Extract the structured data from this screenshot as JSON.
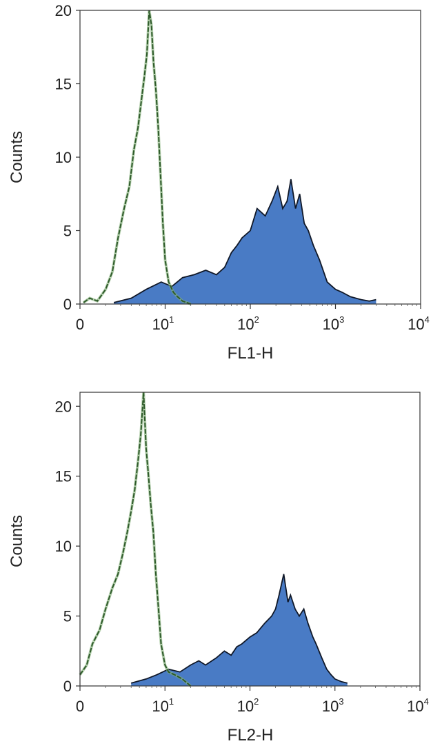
{
  "chart_data": [
    {
      "type": "area",
      "xlabel": "FL1-H",
      "ylabel": "Counts",
      "xscale": "log",
      "xlim": [
        1,
        10000
      ],
      "ylim": [
        0,
        20
      ],
      "xticks": [
        {
          "value": 1,
          "base": "0",
          "exp": ""
        },
        {
          "value": 10,
          "base": "10",
          "exp": "1"
        },
        {
          "value": 100,
          "base": "10",
          "exp": "2"
        },
        {
          "value": 1000,
          "base": "10",
          "exp": "3"
        },
        {
          "value": 10000,
          "base": "10",
          "exp": "4"
        }
      ],
      "yticks": [
        0,
        5,
        10,
        15,
        20
      ],
      "series": [
        {
          "style": "outline",
          "color": "#2e5a2a",
          "x": [
            1.1,
            1.3,
            1.6,
            2.0,
            2.4,
            2.8,
            3.3,
            3.8,
            4.3,
            4.8,
            5.3,
            5.7,
            6.1,
            6.5,
            6.9,
            7.3,
            7.8,
            8.3,
            8.8,
            9.4,
            10,
            11,
            12.5,
            14,
            16,
            20
          ],
          "y": [
            0.1,
            0.4,
            0.2,
            1.0,
            2.2,
            4.5,
            6.5,
            8.0,
            10.5,
            12.0,
            14.0,
            15.5,
            17.0,
            20.0,
            19.0,
            16.5,
            14.5,
            12.0,
            9.0,
            5.5,
            3.0,
            1.5,
            0.8,
            0.5,
            0.2,
            0
          ]
        },
        {
          "style": "filled",
          "color": "#3a70c0",
          "x": [
            2.5,
            4,
            6,
            9,
            12,
            16,
            22,
            30,
            40,
            50,
            60,
            70,
            80,
            100,
            120,
            150,
            180,
            210,
            240,
            270,
            300,
            340,
            380,
            430,
            480,
            550,
            650,
            800,
            1000,
            1200,
            1500,
            2000,
            2500,
            3000
          ],
          "y": [
            0.1,
            0.4,
            1.0,
            1.5,
            1.2,
            1.8,
            2.0,
            2.3,
            2.0,
            2.5,
            3.5,
            4.0,
            4.5,
            5.0,
            6.5,
            6.0,
            7.0,
            8.0,
            6.5,
            7.0,
            8.5,
            6.5,
            7.5,
            5.5,
            5.0,
            4.0,
            3.0,
            1.5,
            1.0,
            0.8,
            0.5,
            0.3,
            0.2,
            0.3
          ]
        }
      ]
    },
    {
      "type": "area",
      "xlabel": "FL2-H",
      "ylabel": "Counts",
      "xscale": "log",
      "xlim": [
        1,
        10000
      ],
      "ylim": [
        0,
        21
      ],
      "xticks": [
        {
          "value": 1,
          "base": "0",
          "exp": ""
        },
        {
          "value": 10,
          "base": "10",
          "exp": "1"
        },
        {
          "value": 100,
          "base": "10",
          "exp": "2"
        },
        {
          "value": 1000,
          "base": "10",
          "exp": "3"
        },
        {
          "value": 10000,
          "base": "10",
          "exp": "4"
        }
      ],
      "yticks": [
        0,
        5,
        10,
        15,
        20
      ],
      "series": [
        {
          "style": "outline",
          "color": "#2e5a2a",
          "x": [
            1.0,
            1.2,
            1.4,
            1.7,
            2.0,
            2.4,
            2.8,
            3.2,
            3.6,
            4.0,
            4.4,
            4.8,
            5.2,
            5.6,
            6.0,
            6.4,
            6.8,
            7.3,
            7.8,
            8.4,
            9.0,
            10,
            11,
            13,
            16,
            20
          ],
          "y": [
            0.8,
            1.5,
            3.0,
            4.0,
            5.5,
            7.0,
            8.0,
            9.5,
            11.0,
            12.5,
            14.0,
            16.0,
            18.0,
            21.0,
            17.0,
            15.0,
            13.0,
            11.0,
            8.0,
            5.5,
            3.0,
            1.5,
            1.0,
            0.8,
            0.5,
            0
          ]
        },
        {
          "style": "filled",
          "color": "#3a70c0",
          "x": [
            4,
            6,
            8,
            11,
            15,
            20,
            25,
            30,
            40,
            50,
            60,
            70,
            80,
            100,
            120,
            150,
            180,
            200,
            220,
            250,
            280,
            300,
            340,
            380,
            430,
            480,
            550,
            600,
            700,
            800,
            900,
            1000,
            1200,
            1400
          ],
          "y": [
            0.2,
            0.5,
            0.8,
            1.2,
            1.0,
            1.5,
            1.8,
            1.5,
            2.0,
            2.5,
            2.2,
            2.8,
            3.0,
            3.5,
            3.8,
            4.5,
            5.0,
            5.5,
            6.5,
            8.0,
            6.0,
            6.5,
            5.5,
            5.0,
            5.5,
            4.5,
            3.5,
            3.0,
            2.0,
            1.2,
            0.8,
            0.5,
            0.3,
            0.2
          ]
        }
      ]
    }
  ]
}
